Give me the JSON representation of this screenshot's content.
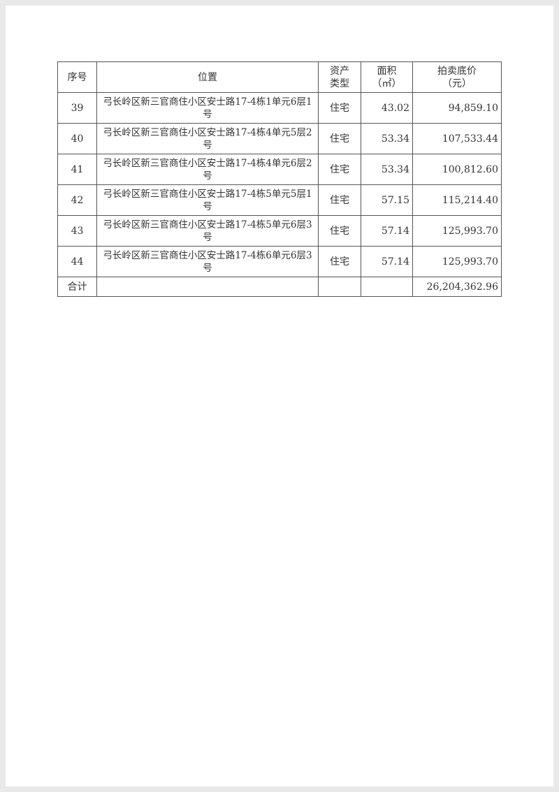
{
  "table": {
    "headers": [
      "序号",
      "位置",
      "资产\n类型",
      "面积\n（㎡）",
      "拍卖底价\n（元）"
    ],
    "rows": [
      {
        "no": "39",
        "location": "弓长岭区新三官商住小区安士路17-4栋1单元6层1号",
        "type": "住宅",
        "area": "43.02",
        "price": "94,859.10"
      },
      {
        "no": "40",
        "location": "弓长岭区新三官商住小区安士路17-4栋4单元5层2号",
        "type": "住宅",
        "area": "53.34",
        "price": "107,533.44"
      },
      {
        "no": "41",
        "location": "弓长岭区新三官商住小区安士路17-4栋4单元6层2号",
        "type": "住宅",
        "area": "53.34",
        "price": "100,812.60"
      },
      {
        "no": "42",
        "location": "弓长岭区新三官商住小区安士路17-4栋5单元5层1号",
        "type": "住宅",
        "area": "57.15",
        "price": "115,214.40"
      },
      {
        "no": "43",
        "location": "弓长岭区新三官商住小区安士路17-4栋5单元6层3号",
        "type": "住宅",
        "area": "57.14",
        "price": "125,993.70"
      },
      {
        "no": "44",
        "location": "弓长岭区新三官商住小区安士路17-4栋6单元6层3号",
        "type": "住宅",
        "area": "57.14",
        "price": "125,993.70"
      }
    ],
    "total": {
      "label": "合计",
      "price": "26,204,362.96"
    }
  }
}
